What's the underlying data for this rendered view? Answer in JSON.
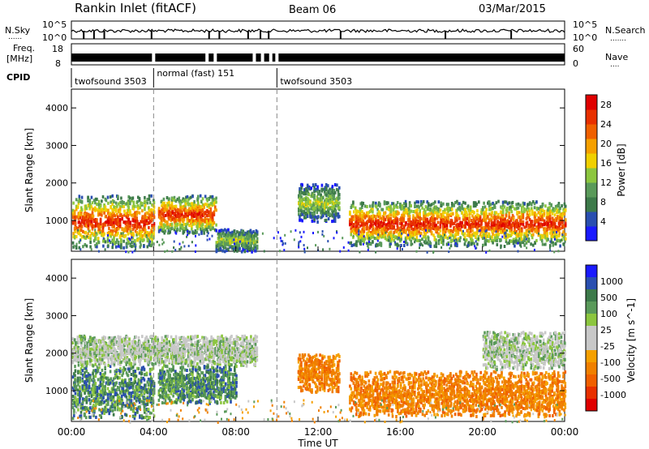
{
  "header": {
    "station": "Rankin Inlet (fitACF)",
    "beam": "Beam 06",
    "date": "03/Mar/2015"
  },
  "noise_panel": {
    "left_label": "N.Sky",
    "right_label": "N.Search",
    "tick_top": "10^5",
    "tick_bottom": "10^0",
    "sky_dotted": "......",
    "search_dotted": "......."
  },
  "freq_panel": {
    "left_label_top": "Freq.",
    "left_label_bottom": "[MHz]",
    "right_label": "Nave",
    "left_ticks": [
      "18",
      "8"
    ],
    "right_ticks": [
      "60",
      "0"
    ],
    "nave_dotted": "...."
  },
  "cpid": {
    "label": "CPID",
    "segments": [
      {
        "name": "twofsound 3503",
        "start_hour": 0.0,
        "end_hour": 4.0
      },
      {
        "name": "normal (fast) 151",
        "start_hour": 4.0,
        "end_hour": 10.0
      },
      {
        "name": "twofsound 3503",
        "start_hour": 10.0,
        "end_hour": 24.0
      }
    ]
  },
  "chart_data": [
    {
      "type": "heatmap",
      "title": "",
      "xlabel": "",
      "ylabel": "Slant Range [km]",
      "xlim": [
        0,
        24
      ],
      "ylim": [
        180,
        4500
      ],
      "yticks": [
        "1000",
        "2000",
        "3000",
        "4000"
      ],
      "colorbar": {
        "label": "Power [dB]",
        "ticks": [
          "4",
          "8",
          "12",
          "16",
          "20",
          "24",
          "28"
        ],
        "range": [
          0,
          30
        ],
        "colors": [
          "#1a1aff",
          "#2a4fb0",
          "#3d7a4a",
          "#5a9a5a",
          "#8cc63f",
          "#f0d000",
          "#f5a000",
          "#f06000",
          "#e83000",
          "#e00000"
        ]
      },
      "scatter_bands": [
        {
          "x_start": 0.0,
          "x_end": 4.0,
          "r_center": 1000,
          "r_width": 700,
          "level": "high"
        },
        {
          "x_start": 4.2,
          "x_end": 7.0,
          "r_center": 1200,
          "r_width": 500,
          "level": "high"
        },
        {
          "x_start": 7.0,
          "x_end": 9.0,
          "r_center": 500,
          "r_width": 300,
          "level": "mid"
        },
        {
          "x_start": 11.0,
          "x_end": 13.0,
          "r_center": 1500,
          "r_width": 500,
          "level": "mid"
        },
        {
          "x_start": 13.5,
          "x_end": 24.0,
          "r_center": 950,
          "r_width": 600,
          "level": "high"
        }
      ]
    },
    {
      "type": "heatmap",
      "title": "",
      "xlabel": "Time UT",
      "ylabel": "Slant Range [km]",
      "xlim": [
        0,
        24
      ],
      "ylim": [
        180,
        4500
      ],
      "xticks": [
        "00:00",
        "04:00",
        "08:00",
        "12:00",
        "16:00",
        "20:00",
        "00:00"
      ],
      "yticks": [
        "1000",
        "2000",
        "3000",
        "4000"
      ],
      "colorbar": {
        "label": "Velocity [m s^-1]",
        "ticks": [
          "1000",
          "500",
          "100",
          "25",
          "-25",
          "-100",
          "-500",
          "-1000"
        ],
        "colors": [
          "#1a1aff",
          "#2a4fb0",
          "#3d7a4a",
          "#5a9a5a",
          "#8cc63f",
          "#c8c8c8",
          "#c8c8c8",
          "#f5a000",
          "#f08000",
          "#f06000",
          "#e83000",
          "#e00000"
        ]
      },
      "scatter_bands": [
        {
          "x_start": 0.0,
          "x_end": 4.0,
          "r_center": 1000,
          "r_width": 700,
          "velocity": "toward"
        },
        {
          "x_start": 0.0,
          "x_end": 9.0,
          "r_center": 2100,
          "r_width": 400,
          "velocity": "low"
        },
        {
          "x_start": 4.2,
          "x_end": 8.0,
          "r_center": 1200,
          "r_width": 500,
          "velocity": "toward"
        },
        {
          "x_start": 11.0,
          "x_end": 13.0,
          "r_center": 1500,
          "r_width": 500,
          "velocity": "away"
        },
        {
          "x_start": 13.5,
          "x_end": 24.0,
          "r_center": 950,
          "r_width": 600,
          "velocity": "away"
        },
        {
          "x_start": 20.0,
          "x_end": 24.0,
          "r_center": 2100,
          "r_width": 500,
          "velocity": "low"
        }
      ]
    }
  ]
}
